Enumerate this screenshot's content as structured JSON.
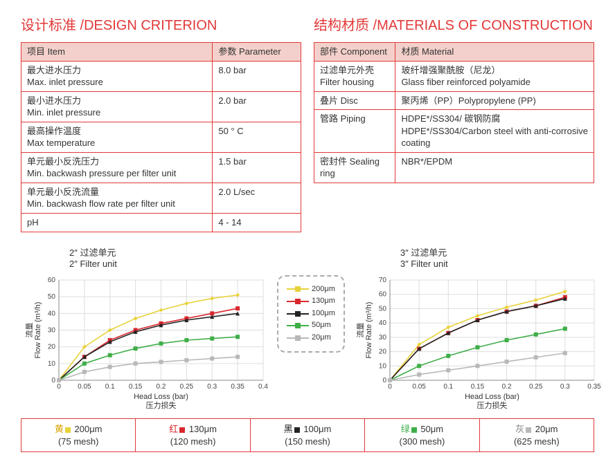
{
  "sections": {
    "design_title": "设计标准 /DESIGN CRITERION",
    "materials_title": "结构材质 /MATERIALS OF CONSTRUCTION"
  },
  "design_table": {
    "head_item": "项目 Item",
    "head_param": "参数 Parameter",
    "rows": [
      {
        "item_cn": "最大进水压力",
        "item_en": "Max. inlet pressure",
        "param": "8.0 bar"
      },
      {
        "item_cn": "最小进水压力",
        "item_en": "Min. inlet pressure",
        "param": "2.0 bar"
      },
      {
        "item_cn": "最高操作温度",
        "item_en": "Max temperature",
        "param": "50 ° C"
      },
      {
        "item_cn": "单元最小反洗压力",
        "item_en": "Min. backwash pressure per filter unit",
        "param": "1.5 bar"
      },
      {
        "item_cn": "单元最小反洗流量",
        "item_en": "Min. backwash flow rate per filter unit",
        "param": "2.0 L/sec"
      },
      {
        "item_cn": "pH",
        "item_en": "",
        "param": "4 - 14"
      }
    ]
  },
  "materials_table": {
    "head_comp": "部件 Component",
    "head_mat": "材质 Material",
    "rows": [
      {
        "comp_cn": "过滤单元外壳",
        "comp_en": "Filter housing",
        "mat_cn": "玻纤增强聚酰胺（尼龙）",
        "mat_en": "Glass fiber reinforced polyamide"
      },
      {
        "comp_cn": "叠片 Disc",
        "comp_en": "",
        "mat_cn": "聚丙烯（PP）Polypropylene (PP)",
        "mat_en": ""
      },
      {
        "comp_cn": "管路 Piping",
        "comp_en": "",
        "mat_cn": "HDPE*/SS304/ 碳钢防腐",
        "mat_en": "HDPE*/SS304/Carbon steel with anti-corrosive coating"
      },
      {
        "comp_cn": "密封件 Sealing ring",
        "comp_en": "",
        "mat_cn": "NBR*/EPDM",
        "mat_en": ""
      }
    ]
  },
  "legend": {
    "items": [
      {
        "label": "200μm",
        "color": "#e8d23a",
        "marker": "diamond"
      },
      {
        "label": "130μm",
        "color": "#d9282e",
        "marker": "square"
      },
      {
        "label": "100μm",
        "color": "#222222",
        "marker": "triangle"
      },
      {
        "label": "50μm",
        "color": "#3fae49",
        "marker": "square"
      },
      {
        "label": "20μm",
        "color": "#b8b8b8",
        "marker": "square"
      }
    ]
  },
  "chart_common": {
    "ylabel_cn": "流量",
    "ylabel_en": "Flow Rate (m³/h)",
    "xlabel_en": "Head Loss (bar)",
    "xlabel_cn": "压力损失",
    "grid_color": "#dddddd",
    "axis_color": "#888888",
    "line_width": 1.6,
    "marker_size": 3
  },
  "chart1": {
    "title_cn": "2″ 过滤单元",
    "title_en": "2″ Filter unit",
    "xlim": [
      0,
      0.4
    ],
    "xtick_step": 0.05,
    "ylim": [
      0,
      60
    ],
    "ytick_step": 10,
    "x": [
      0,
      0.05,
      0.1,
      0.15,
      0.2,
      0.25,
      0.3,
      0.35
    ],
    "series": [
      {
        "color": "#e8d23a",
        "marker": "diamond",
        "y": [
          0,
          20,
          30,
          37,
          42,
          46,
          49,
          51
        ]
      },
      {
        "color": "#d9282e",
        "marker": "square",
        "y": [
          0,
          14,
          24,
          30,
          34,
          37,
          40,
          43
        ]
      },
      {
        "color": "#222222",
        "marker": "triangle",
        "y": [
          0,
          14,
          23,
          29,
          33,
          36,
          38,
          40
        ]
      },
      {
        "color": "#3fae49",
        "marker": "square",
        "y": [
          0,
          10,
          15,
          19,
          22,
          24,
          25,
          26
        ]
      },
      {
        "color": "#b8b8b8",
        "marker": "square",
        "y": [
          0,
          5,
          8,
          10,
          11,
          12,
          13,
          14
        ]
      }
    ]
  },
  "chart2": {
    "title_cn": "3″ 过滤单元",
    "title_en": "3″ Filter unit",
    "xlim": [
      0,
      0.35
    ],
    "xtick_step": 0.05,
    "ylim": [
      0,
      70
    ],
    "ytick_step": 10,
    "x": [
      0,
      0.05,
      0.1,
      0.15,
      0.2,
      0.25,
      0.3
    ],
    "series": [
      {
        "color": "#e8d23a",
        "marker": "diamond",
        "y": [
          0,
          25,
          37,
          45,
          51,
          56,
          62
        ]
      },
      {
        "color": "#d9282e",
        "marker": "square",
        "y": [
          0,
          22,
          33,
          42,
          48,
          52,
          58
        ]
      },
      {
        "color": "#222222",
        "marker": "triangle",
        "y": [
          0,
          22,
          33,
          42,
          48,
          52,
          57
        ]
      },
      {
        "color": "#3fae49",
        "marker": "square",
        "y": [
          0,
          10,
          17,
          23,
          28,
          32,
          36
        ]
      },
      {
        "color": "#b8b8b8",
        "marker": "square",
        "y": [
          0,
          4,
          7,
          10,
          13,
          16,
          19
        ]
      }
    ]
  },
  "mesh_row": [
    {
      "label_cn": "黄",
      "color_word": "#d9a400",
      "sw": "#e8d23a",
      "size": "200μm",
      "mesh": "(75 mesh)"
    },
    {
      "label_cn": "红",
      "color_word": "#d9282e",
      "sw": "#d9282e",
      "size": "130μm",
      "mesh": "(120 mesh)"
    },
    {
      "label_cn": "黑",
      "color_word": "#222222",
      "sw": "#222222",
      "size": "100μm",
      "mesh": "(150 mesh)"
    },
    {
      "label_cn": "绿",
      "color_word": "#3fae49",
      "sw": "#3fae49",
      "size": "50μm",
      "mesh": "(300 mesh)"
    },
    {
      "label_cn": "灰",
      "color_word": "#888888",
      "sw": "#b8b8b8",
      "size": "20μm",
      "mesh": "(625 mesh)"
    }
  ]
}
